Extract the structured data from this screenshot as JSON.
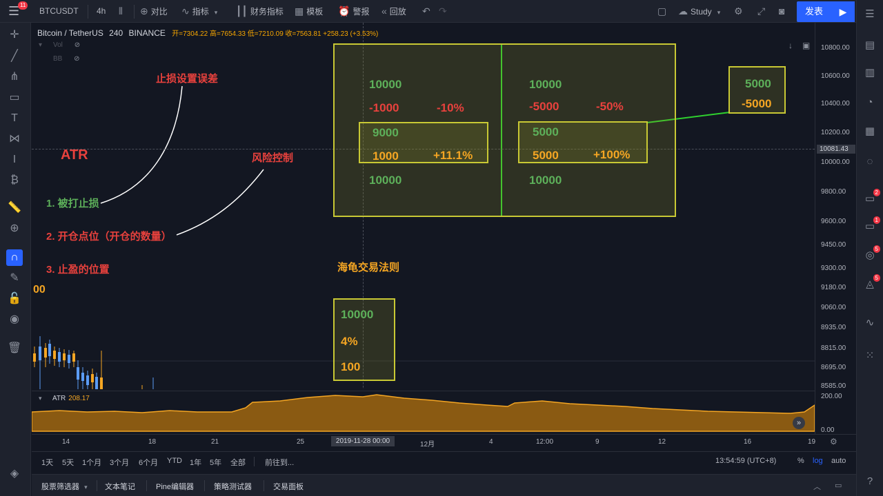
{
  "toolbar": {
    "menu_badge": "11",
    "symbol": "BTCUSDT",
    "interval": "4h",
    "compare": "对比",
    "indicators": "指标",
    "financials": "财务指标",
    "templates": "模板",
    "alert": "警报",
    "replay": "回放",
    "study": "Study",
    "publish": "发表"
  },
  "legend": {
    "title": "Bitcoin / TetherUS",
    "interval": "240",
    "exchange": "BINANCE",
    "ohlc": "开=7304.22 高=7654.33 低=7210.09 收=7563.81 +258.23 (+3.53%)",
    "vol_label": "Vol",
    "bb_label": "BB"
  },
  "annotations": {
    "stoploss_error": "止损设置误差",
    "atr": "ATR",
    "risk_control": "风险控制",
    "item1": "1. 被打止损",
    "item2": "2. 开仓点位（开仓的数量）",
    "item3": "3. 止盈的位置",
    "partial": "00",
    "turtle_rule": "海龟交易法则"
  },
  "left_panel": {
    "capital": "10000",
    "loss": "-1000",
    "loss_pct": "-10%",
    "remaining": "9000",
    "recover": "1000",
    "recover_pct": "+11.1%",
    "restored": "10000"
  },
  "right_panel": {
    "capital": "10000",
    "loss": "-5000",
    "loss_pct": "-50%",
    "remaining": "5000",
    "recover": "5000",
    "recover_pct": "+100%",
    "restored": "10000"
  },
  "side_box": {
    "value": "5000",
    "loss": "-5000"
  },
  "turtle_box": {
    "capital": "10000",
    "risk_pct": "4%",
    "amount": "100"
  },
  "price_axis": {
    "labels": [
      "10800.00",
      "10600.00",
      "10400.00",
      "10200.00",
      "10000.00",
      "9800.00",
      "9600.00",
      "9450.00",
      "9300.00",
      "9180.00",
      "9060.00",
      "8935.00",
      "8815.00",
      "8695.00",
      "8585.00"
    ],
    "current": "10081.43",
    "atr_top": "200.00",
    "atr_bottom": "0.00"
  },
  "atr": {
    "label": "ATR",
    "value": "208.17"
  },
  "time_axis": {
    "labels": [
      "14",
      "18",
      "21",
      "25",
      "12月",
      "4",
      "12:00",
      "9",
      "12",
      "16",
      "19"
    ],
    "cursor": "2019-11-28   00:00"
  },
  "range_bar": {
    "ranges": [
      "1天",
      "5天",
      "1个月",
      "3个月",
      "6个月",
      "YTD",
      "1年",
      "5年",
      "全部"
    ],
    "goto": "前往到...",
    "clock": "13:54:59 (UTC+8)",
    "pct": "%",
    "log": "log",
    "auto": "auto"
  },
  "bottom_tabs": [
    "股票筛选器",
    "文本笔记",
    "Pine编辑器",
    "策略测试器",
    "交易面板"
  ],
  "right_badges": [
    "2",
    "1",
    "5",
    "5"
  ],
  "colors": {
    "background": "#131722",
    "accent": "#2962ff",
    "green": "#5db05a",
    "red": "#e8413d",
    "orange": "#f5a623",
    "box_border": "#c9c934",
    "divider_line": "#2fd12f"
  }
}
